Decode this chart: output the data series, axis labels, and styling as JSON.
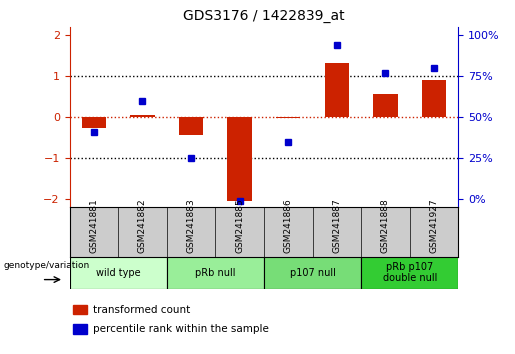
{
  "title": "GDS3176 / 1422839_at",
  "samples": [
    "GSM241881",
    "GSM241882",
    "GSM241883",
    "GSM241885",
    "GSM241886",
    "GSM241887",
    "GSM241888",
    "GSM241927"
  ],
  "bar_values": [
    -0.28,
    0.05,
    -0.45,
    -2.05,
    -0.03,
    1.3,
    0.55,
    0.9
  ],
  "dot_values": [
    -0.38,
    0.38,
    -1.0,
    -2.05,
    -0.62,
    1.75,
    1.08,
    1.2
  ],
  "bar_color": "#cc2200",
  "dot_color": "#0000cc",
  "ylim": [
    -2.2,
    2.2
  ],
  "yticks_left": [
    -2,
    -1,
    0,
    1,
    2
  ],
  "right_tick_positions": [
    -2,
    -1,
    0,
    1,
    2
  ],
  "right_tick_labels": [
    "0%",
    "25%",
    "50%",
    "75%",
    "100%"
  ],
  "groups": [
    {
      "label": "wild type",
      "start": 0,
      "end": 2,
      "color": "#ccffcc"
    },
    {
      "label": "pRb null",
      "start": 2,
      "end": 4,
      "color": "#99ee99"
    },
    {
      "label": "p107 null",
      "start": 4,
      "end": 6,
      "color": "#77dd77"
    },
    {
      "label": "pRb p107\ndouble null",
      "start": 6,
      "end": 8,
      "color": "#33cc33"
    }
  ],
  "legend_items": [
    {
      "color": "#cc2200",
      "label": "transformed count"
    },
    {
      "color": "#0000cc",
      "label": "percentile rank within the sample"
    }
  ],
  "genotype_label": "genotype/variation",
  "background_color": "#ffffff",
  "bar_width": 0.5,
  "sample_label_bg": "#cccccc",
  "group_border_color": "#000000"
}
